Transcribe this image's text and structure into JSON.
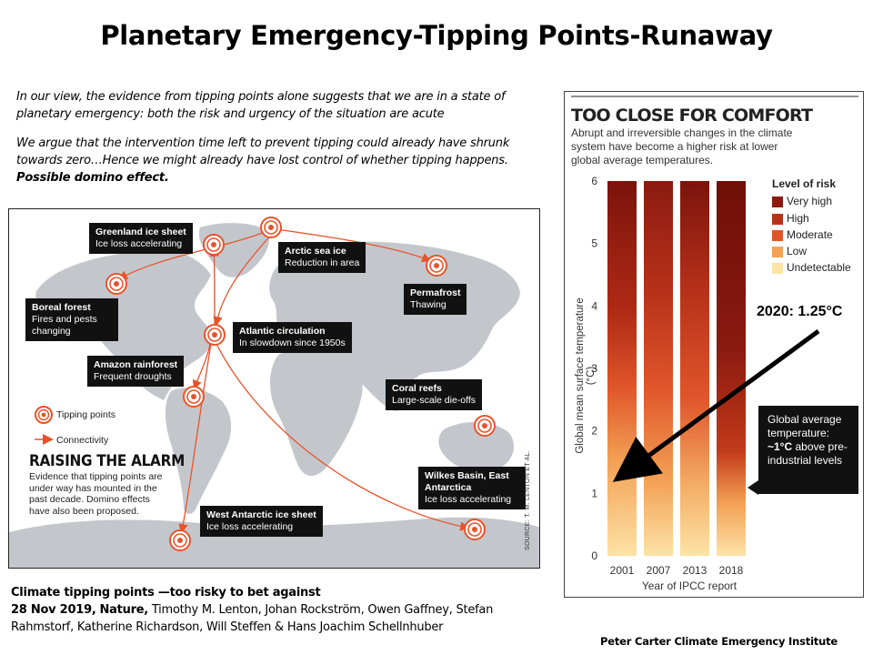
{
  "title": "Planetary Emergency-Tipping Points-Runaway",
  "quote1": "In our view, the evidence from tipping points alone suggests that we are in a state of planetary emergency: both the risk and urgency of the situation are acute",
  "quote2": "We argue that the intervention time left to prevent tipping could already have shrunk towards zero…Hence we might already have lost control of whether tipping happens.",
  "quote2_tail": "Possible domino effect.",
  "map": {
    "labels": {
      "greenland": {
        "title": "Greenland ice sheet",
        "sub": "Ice loss accelerating"
      },
      "arctic": {
        "title": "Arctic sea ice",
        "sub": "Reduction in area"
      },
      "boreal": {
        "title": "Boreal forest",
        "sub": "Fires and pests changing"
      },
      "permafrost": {
        "title": "Permafrost",
        "sub": "Thawing"
      },
      "atlantic": {
        "title": "Atlantic circulation",
        "sub": "In slowdown since 1950s"
      },
      "amazon": {
        "title": "Amazon rainforest",
        "sub": "Frequent droughts"
      },
      "coral": {
        "title": "Coral reefs",
        "sub": "Large-scale die-offs"
      },
      "wilkes": {
        "title": "Wilkes Basin, East Antarctica",
        "sub": "Ice loss accelerating"
      },
      "westant": {
        "title": "West Antarctic ice sheet",
        "sub": "Ice loss accelerating"
      }
    },
    "legend_tipping": "Tipping points",
    "legend_connectivity": "Connectivity",
    "raising_title": "RAISING THE ALARM",
    "raising_text": "Evidence that tipping points are under way has mounted in the past decade. Domino effects have also been proposed.",
    "source": "SOURCE: T. M. LENTON ET AL.",
    "accent": "#e8532b"
  },
  "chart_data": {
    "type": "bar",
    "title": "TOO CLOSE FOR COMFORT",
    "subtitle": "Abrupt and irreversible changes in the climate system have become a higher risk at lower global average temperatures.",
    "categories": [
      "2001",
      "2007",
      "2013",
      "2018"
    ],
    "xlabel": "Year of IPCC report",
    "ylabel": "Global mean surface temperature (°C)",
    "ylim": [
      0,
      6
    ],
    "yticks": [
      0,
      1,
      2,
      3,
      4,
      5,
      6
    ],
    "legend_title": "Level of risk",
    "risk_levels": [
      {
        "name": "Very high",
        "color": "#8b1a10"
      },
      {
        "name": "High",
        "color": "#b8321a"
      },
      {
        "name": "Moderate",
        "color": "#e0552a"
      },
      {
        "name": "Low",
        "color": "#f3a155"
      },
      {
        "name": "Undetectable",
        "color": "#fde3a6"
      }
    ],
    "callout": {
      "line1": "Global average temperature:",
      "bold": "~1°C",
      "line2": "above pre-industrial levels"
    },
    "annotation": "2020: 1.25°C",
    "annotation_value": 1.25
  },
  "citation": {
    "title": "Climate tipping points —too risky to bet against",
    "date": "28 Nov 2019,",
    "journal": "Nature,",
    "authors": "Timothy M. Lenton, Johan Rockström, Owen Gaffney, Stefan Rahmstorf, Katherine Richardson, Will Steffen & Hans Joachim Schellnhuber"
  },
  "credit": "Peter Carter Climate Emergency Institute"
}
